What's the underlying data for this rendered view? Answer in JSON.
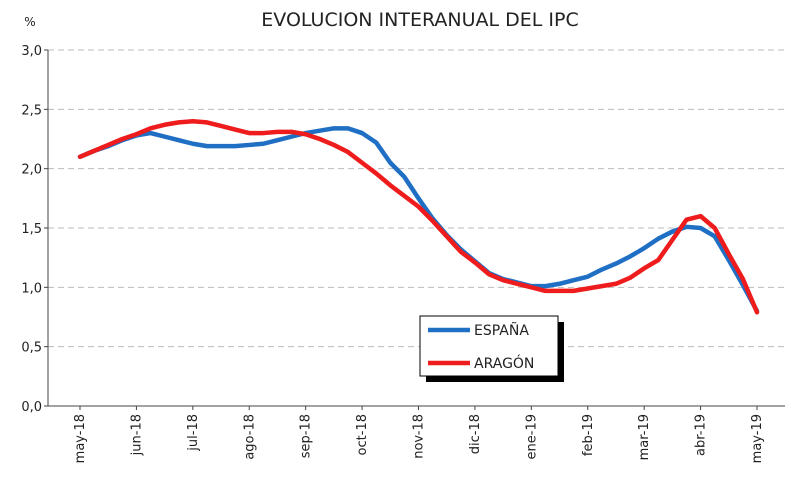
{
  "chart_data": {
    "type": "line",
    "title": "EVOLUCION INTERANUAL DEL IPC",
    "y_label": "%",
    "categories": [
      "may-18",
      null,
      null,
      null,
      "jun-18",
      null,
      null,
      null,
      "jul-18",
      null,
      null,
      null,
      "ago-18",
      null,
      null,
      null,
      "sep-18",
      null,
      null,
      null,
      "oct-18",
      null,
      null,
      null,
      "nov-18",
      null,
      null,
      null,
      "dic-18",
      null,
      null,
      null,
      "ene-19",
      null,
      null,
      null,
      "feb-19",
      null,
      null,
      null,
      "mar-19",
      null,
      null,
      null,
      "abr-19",
      null,
      null,
      null,
      "may-19"
    ],
    "series": [
      {
        "name": "ESPAÑA",
        "color": "#1f6fc5",
        "values": [
          2.1,
          2.15,
          2.19,
          2.24,
          2.28,
          2.3,
          2.27,
          2.24,
          2.21,
          2.19,
          2.19,
          2.19,
          2.2,
          2.21,
          2.24,
          2.27,
          2.3,
          2.32,
          2.34,
          2.34,
          2.3,
          2.22,
          2.05,
          1.93,
          1.75,
          1.58,
          1.44,
          1.32,
          1.22,
          1.12,
          1.07,
          1.04,
          1.01,
          1.01,
          1.03,
          1.06,
          1.09,
          1.15,
          1.2,
          1.26,
          1.33,
          1.41,
          1.47,
          1.51,
          1.5,
          1.43,
          1.23,
          1.02,
          0.8
        ]
      },
      {
        "name": "ARAGÓN",
        "color": "#ee1c1c",
        "values": [
          2.1,
          2.15,
          2.2,
          2.25,
          2.29,
          2.34,
          2.37,
          2.39,
          2.4,
          2.39,
          2.36,
          2.33,
          2.3,
          2.3,
          2.31,
          2.31,
          2.29,
          2.25,
          2.2,
          2.14,
          2.05,
          1.96,
          1.86,
          1.77,
          1.68,
          1.56,
          1.43,
          1.3,
          1.21,
          1.11,
          1.06,
          1.03,
          1.0,
          0.97,
          0.97,
          0.97,
          0.99,
          1.01,
          1.03,
          1.08,
          1.16,
          1.23,
          1.4,
          1.57,
          1.6,
          1.5,
          1.28,
          1.07,
          0.79
        ]
      }
    ],
    "ylim": [
      0,
      3
    ],
    "yticks": [
      {
        "value": 0,
        "label": "0,0"
      },
      {
        "value": 0.5,
        "label": "0,5"
      },
      {
        "value": 1,
        "label": "1,0"
      },
      {
        "value": 1.5,
        "label": "1,5"
      },
      {
        "value": 2,
        "label": "2,0"
      },
      {
        "value": 2.5,
        "label": "2,5"
      },
      {
        "value": 3,
        "label": "3,0"
      }
    ],
    "grid": true
  }
}
